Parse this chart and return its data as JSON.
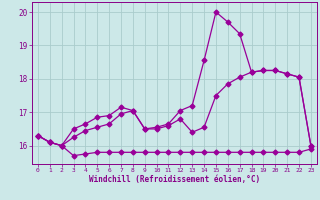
{
  "x": [
    0,
    1,
    2,
    3,
    4,
    5,
    6,
    7,
    8,
    9,
    10,
    11,
    12,
    13,
    14,
    15,
    16,
    17,
    18,
    19,
    20,
    21,
    22,
    23
  ],
  "line1": [
    16.3,
    16.1,
    16.0,
    15.7,
    15.75,
    15.8,
    15.8,
    15.8,
    15.8,
    15.8,
    15.8,
    15.8,
    15.8,
    15.8,
    15.8,
    15.8,
    15.8,
    15.8,
    15.8,
    15.8,
    15.8,
    15.8,
    15.8,
    15.9
  ],
  "line2": [
    16.3,
    16.1,
    16.0,
    16.25,
    16.45,
    16.55,
    16.65,
    16.95,
    17.05,
    16.5,
    16.5,
    16.6,
    16.8,
    16.4,
    16.55,
    17.5,
    17.85,
    18.05,
    18.2,
    18.25,
    18.25,
    18.15,
    18.05,
    16.0
  ],
  "line3": [
    16.3,
    16.1,
    16.0,
    16.5,
    16.65,
    16.85,
    16.9,
    17.15,
    17.05,
    16.5,
    16.55,
    16.65,
    17.05,
    17.2,
    18.55,
    20.0,
    19.7,
    19.35,
    18.2,
    18.25,
    18.25,
    18.15,
    18.05,
    16.0
  ],
  "line_color": "#990099",
  "bg_color": "#cce8e8",
  "grid_color": "#aacccc",
  "axis_color": "#880088",
  "xlabel": "Windchill (Refroidissement éolien,°C)",
  "ylim": [
    15.45,
    20.3
  ],
  "yticks": [
    16,
    17,
    18,
    19,
    20
  ],
  "xticks": [
    0,
    1,
    2,
    3,
    4,
    5,
    6,
    7,
    8,
    9,
    10,
    11,
    12,
    13,
    14,
    15,
    16,
    17,
    18,
    19,
    20,
    21,
    22,
    23
  ]
}
